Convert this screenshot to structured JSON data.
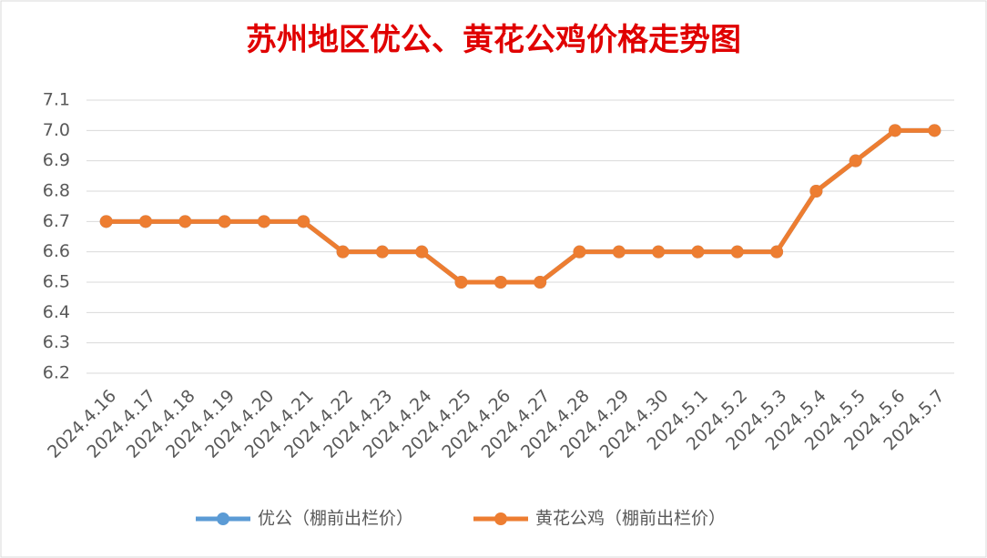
{
  "chart_data": {
    "type": "line",
    "title": "苏州地区优公、黄花公鸡价格走势图",
    "categories": [
      "2024.4.16",
      "2024.4.17",
      "2024.4.18",
      "2024.4.19",
      "2024.4.20",
      "2024.4.21",
      "2024.4.22",
      "2024.4.23",
      "2024.4.24",
      "2024.4.25",
      "2024.4.26",
      "2024.4.27",
      "2024.4.28",
      "2024.4.29",
      "2024.4.30",
      "2024.5.1",
      "2024.5.2",
      "2024.5.3",
      "2024.5.4",
      "2024.5.5",
      "2024.5.6",
      "2024.5.7"
    ],
    "series": [
      {
        "name": "优公（棚前出栏价）",
        "color": "#5b9bd5",
        "values": [
          6.7,
          6.7,
          6.7,
          6.7,
          6.7,
          6.7,
          6.6,
          6.6,
          6.6,
          6.5,
          6.5,
          6.5,
          6.6,
          6.6,
          6.6,
          6.6,
          6.6,
          6.6,
          6.8,
          6.9,
          7.0,
          7.0
        ]
      },
      {
        "name": "黄花公鸡（棚前出栏价）",
        "color": "#ed7d31",
        "values": [
          6.7,
          6.7,
          6.7,
          6.7,
          6.7,
          6.7,
          6.6,
          6.6,
          6.6,
          6.5,
          6.5,
          6.5,
          6.6,
          6.6,
          6.6,
          6.6,
          6.6,
          6.6,
          6.8,
          6.9,
          7.0,
          7.0
        ]
      }
    ],
    "ylim": [
      6.2,
      7.1
    ],
    "yticks": [
      6.2,
      6.3,
      6.4,
      6.5,
      6.6,
      6.7,
      6.8,
      6.9,
      {
        "value": 7,
        "label": "7.0"
      },
      7.1
    ],
    "grid": true
  }
}
